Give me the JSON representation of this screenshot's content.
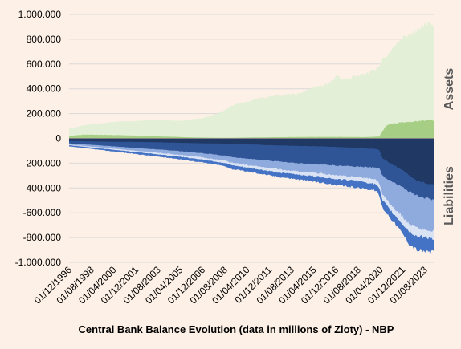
{
  "chart_data": {
    "type": "area",
    "title": "Central Bank Balance Evolution (data in millions of Zloty) - NBP",
    "ylim": [
      -1000000,
      1000000
    ],
    "yticks": [
      {
        "value": 1000000,
        "label": "1.000.000"
      },
      {
        "value": 800000,
        "label": "800.000"
      },
      {
        "value": 600000,
        "label": "600.000"
      },
      {
        "value": 400000,
        "label": "400.000"
      },
      {
        "value": 200000,
        "label": "200.000"
      },
      {
        "value": 0,
        "label": "0"
      },
      {
        "value": -200000,
        "label": "-200.000"
      },
      {
        "value": -400000,
        "label": "-400.000"
      },
      {
        "value": -600000,
        "label": "-600.000"
      },
      {
        "value": -800000,
        "label": "-800.000"
      },
      {
        "value": -1000000,
        "label": "-1.000.000"
      }
    ],
    "xrange": [
      "1996-12",
      "2024-04"
    ],
    "xticks": [
      {
        "date": "1996-12",
        "label": "01/12/1996"
      },
      {
        "date": "1998-08",
        "label": "01/08/1998"
      },
      {
        "date": "2000-04",
        "label": "01/04/2000"
      },
      {
        "date": "2001-12",
        "label": "01/12/2001"
      },
      {
        "date": "2003-08",
        "label": "01/08/2003"
      },
      {
        "date": "2005-04",
        "label": "01/04/2005"
      },
      {
        "date": "2006-12",
        "label": "01/12/2006"
      },
      {
        "date": "2008-08",
        "label": "01/08/2008"
      },
      {
        "date": "2010-04",
        "label": "01/04/2010"
      },
      {
        "date": "2011-12",
        "label": "01/12/2011"
      },
      {
        "date": "2013-08",
        "label": "01/08/2013"
      },
      {
        "date": "2015-04",
        "label": "01/04/2015"
      },
      {
        "date": "2016-12",
        "label": "01/12/2016"
      },
      {
        "date": "2018-08",
        "label": "01/08/2018"
      },
      {
        "date": "2020-04",
        "label": "01/04/2020"
      },
      {
        "date": "2021-12",
        "label": "01/12/2021"
      },
      {
        "date": "2023-08",
        "label": "01/08/2023"
      }
    ],
    "grid": true,
    "panel_labels": {
      "assets": "Assets",
      "liabilities": "Liabilities"
    },
    "colors": {
      "background": "#fdf0e6",
      "assets_total": "#e3efd7",
      "assets_component": "#a6cf85",
      "liab_core": "#1f3864",
      "liab_layer_2": "#2f5597",
      "liab_layer_3": "#8faadc",
      "liab_layer_4": "#dae3f3",
      "liab_layer_5": "#4472c4",
      "grid": "#d9d9d9"
    },
    "assets": {
      "total": {
        "x": [
          "1996-12",
          "1997-06",
          "1998-01",
          "1999-01",
          "2000-01",
          "2001-01",
          "2002-01",
          "2003-01",
          "2004-01",
          "2005-01",
          "2006-01",
          "2007-01",
          "2008-01",
          "2008-09",
          "2009-01",
          "2010-01",
          "2011-01",
          "2012-01",
          "2013-01",
          "2014-01",
          "2015-01",
          "2016-01",
          "2016-09",
          "2017-01",
          "2017-06",
          "2018-01",
          "2019-01",
          "2019-12",
          "2020-03",
          "2020-06",
          "2021-01",
          "2021-06",
          "2022-01",
          "2022-06",
          "2023-01",
          "2023-06",
          "2024-01",
          "2024-04"
        ],
        "values": [
          75000,
          90000,
          105000,
          118000,
          128000,
          138000,
          140000,
          148000,
          150000,
          140000,
          150000,
          165000,
          200000,
          230000,
          260000,
          290000,
          320000,
          340000,
          350000,
          360000,
          400000,
          430000,
          470000,
          505000,
          470000,
          490000,
          520000,
          560000,
          580000,
          650000,
          700000,
          760000,
          820000,
          830000,
          870000,
          910000,
          930000,
          910000
        ]
      },
      "component": {
        "x": [
          "1996-12",
          "1997-06",
          "1998-01",
          "2000-01",
          "2002-01",
          "2004-01",
          "2005-01",
          "2006-01",
          "2008-01",
          "2009-01",
          "2011-01",
          "2013-01",
          "2015-01",
          "2017-01",
          "2019-01",
          "2020-03",
          "2020-06",
          "2020-09",
          "2021-01",
          "2022-01",
          "2023-01",
          "2024-01",
          "2024-04"
        ],
        "values": [
          15000,
          25000,
          30000,
          28000,
          22000,
          15000,
          12000,
          8000,
          5000,
          5000,
          8000,
          10000,
          12000,
          12000,
          10000,
          15000,
          60000,
          100000,
          115000,
          130000,
          140000,
          150000,
          145000
        ]
      }
    },
    "liabilities": {
      "x": [
        "1996-12",
        "1999-01",
        "2001-01",
        "2003-01",
        "2005-01",
        "2007-01",
        "2008-09",
        "2009-01",
        "2011-01",
        "2012-01",
        "2013-01",
        "2014-01",
        "2015-01",
        "2016-01",
        "2017-01",
        "2018-01",
        "2019-01",
        "2019-12",
        "2020-03",
        "2020-06",
        "2021-01",
        "2022-01",
        "2022-06",
        "2023-01",
        "2024-01",
        "2024-04"
      ],
      "series": [
        {
          "key": "liab_core",
          "values": [
            -20000,
            -25000,
            -28000,
            -30000,
            -35000,
            -40000,
            -42000,
            -45000,
            -50000,
            -55000,
            -58000,
            -60000,
            -62000,
            -65000,
            -70000,
            -75000,
            -80000,
            -85000,
            -95000,
            -160000,
            -200000,
            -260000,
            -300000,
            -340000,
            -370000,
            -375000
          ]
        },
        {
          "key": "liab_layer_2",
          "values": [
            -40000,
            -55000,
            -70000,
            -85000,
            -100000,
            -120000,
            -140000,
            -150000,
            -170000,
            -180000,
            -190000,
            -200000,
            -205000,
            -210000,
            -220000,
            -225000,
            -230000,
            -235000,
            -240000,
            -300000,
            -340000,
            -400000,
            -430000,
            -460000,
            -490000,
            -495000
          ]
        },
        {
          "key": "liab_layer_3",
          "values": [
            -50000,
            -70000,
            -90000,
            -110000,
            -130000,
            -155000,
            -180000,
            -195000,
            -225000,
            -240000,
            -255000,
            -265000,
            -275000,
            -285000,
            -300000,
            -305000,
            -315000,
            -330000,
            -360000,
            -450000,
            -530000,
            -640000,
            -690000,
            -720000,
            -750000,
            -745000
          ]
        },
        {
          "key": "liab_layer_4",
          "values": [
            -55000,
            -78000,
            -100000,
            -122000,
            -145000,
            -172000,
            -200000,
            -215000,
            -248000,
            -265000,
            -280000,
            -290000,
            -302000,
            -313000,
            -330000,
            -337000,
            -350000,
            -370000,
            -405000,
            -500000,
            -580000,
            -700000,
            -750000,
            -790000,
            -800000,
            -810000
          ]
        },
        {
          "key": "liab_layer_5",
          "values": [
            -65000,
            -90000,
            -115000,
            -140000,
            -165000,
            -195000,
            -225000,
            -245000,
            -280000,
            -300000,
            -315000,
            -330000,
            -345000,
            -360000,
            -380000,
            -390000,
            -405000,
            -420000,
            -460000,
            -560000,
            -640000,
            -780000,
            -850000,
            -900000,
            -920000,
            -910000
          ]
        }
      ]
    }
  }
}
